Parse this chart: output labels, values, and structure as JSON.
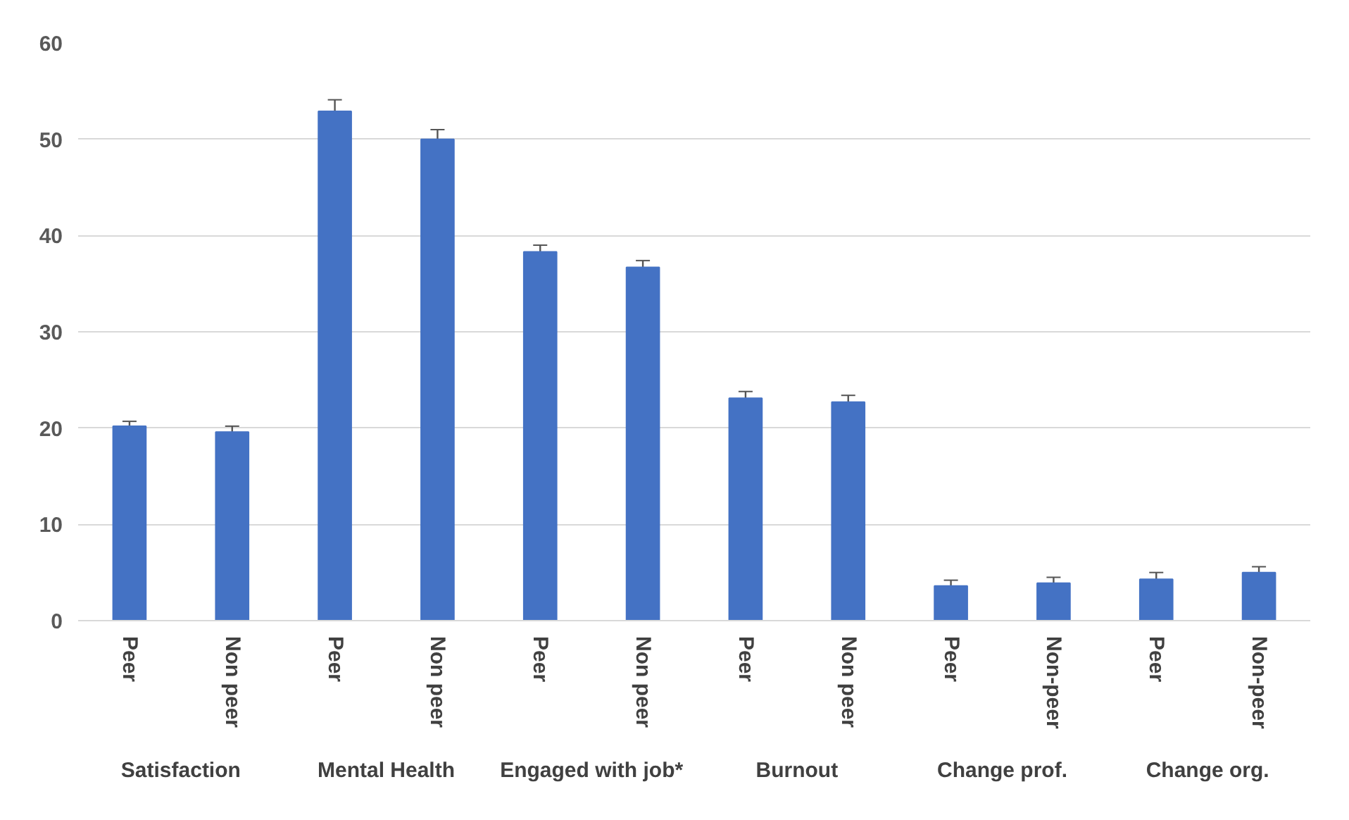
{
  "chart_data": {
    "type": "bar",
    "categories": [
      "Peer",
      "Non peer",
      "Peer",
      "Non peer",
      "Peer",
      "Non peer",
      "Peer",
      "Non peer",
      "Peer",
      "Non-peer",
      "Peer",
      "Non-peer"
    ],
    "values": [
      20.2,
      19.6,
      52.9,
      50.0,
      38.3,
      36.7,
      23.1,
      22.7,
      3.6,
      3.9,
      4.3,
      5.0
    ],
    "errors": [
      0.5,
      0.6,
      1.2,
      1.0,
      0.7,
      0.7,
      0.7,
      0.7,
      0.6,
      0.6,
      0.7,
      0.6
    ],
    "color": "#4472c4",
    "annotations": [
      "Satisfaction",
      "Mental Health",
      "Engaged with job*",
      "Burnout",
      "Change prof.",
      "Change org."
    ],
    "ylim": [
      0,
      60
    ],
    "yticks": [
      0,
      10,
      20,
      30,
      40,
      50,
      60
    ],
    "grid": "y"
  }
}
